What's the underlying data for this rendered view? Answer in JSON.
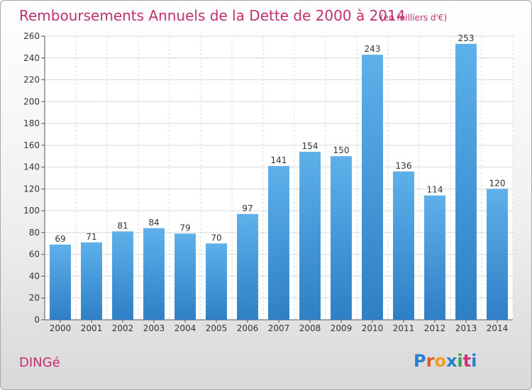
{
  "chart_data": {
    "type": "bar",
    "title": "Remboursements Annuels de la Dette de 2000 à 2014",
    "subtitle": "(en milliers d'€)",
    "categories": [
      "2000",
      "2001",
      "2002",
      "2003",
      "2004",
      "2005",
      "2006",
      "2007",
      "2008",
      "2009",
      "2010",
      "2011",
      "2012",
      "2013",
      "2014"
    ],
    "values": [
      69,
      71,
      81,
      84,
      79,
      70,
      97,
      141,
      154,
      150,
      243,
      136,
      114,
      253,
      120
    ],
    "ylim": [
      0,
      260
    ],
    "yticks": [
      0,
      20,
      40,
      60,
      80,
      100,
      120,
      140,
      160,
      180,
      200,
      220,
      240,
      260
    ],
    "xlabel": "",
    "ylabel": "",
    "grid": true,
    "bar_color": "#3a8fd6"
  },
  "footer": {
    "municipality": "DINGé",
    "brand": "Proxiti",
    "brand_colors": [
      "#2a7fd0",
      "#e05a22",
      "#f0a020",
      "#2a7fd0",
      "#3aa040",
      "#d03080",
      "#2a7fd0"
    ]
  }
}
